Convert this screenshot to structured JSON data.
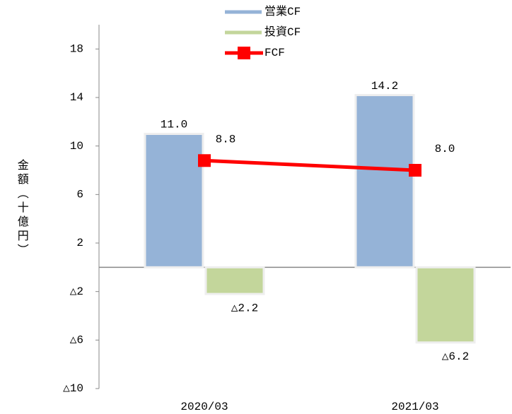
{
  "chart_data": {
    "type": "combo",
    "y_axis_label": "金額（十億円）",
    "categories": [
      "2020/03",
      "2021/03"
    ],
    "series": [
      {
        "name": "営業CF",
        "type": "bar",
        "color": "#95b3d7",
        "values": [
          11.0,
          14.2
        ],
        "value_labels": [
          "11.0",
          "14.2"
        ]
      },
      {
        "name": "投資CF",
        "type": "bar",
        "color": "#c3d69b",
        "values": [
          -2.2,
          -6.2
        ],
        "value_labels": [
          "△2.2",
          "△6.2"
        ]
      },
      {
        "name": "FCF",
        "type": "line",
        "color": "#ff0000",
        "values": [
          8.8,
          8.0
        ],
        "value_labels": [
          "8.8",
          "8.0"
        ]
      }
    ],
    "ylim": [
      -10,
      20
    ],
    "yticks": [
      {
        "value": -10,
        "label": "△10"
      },
      {
        "value": -6,
        "label": "△6"
      },
      {
        "value": -2,
        "label": "△2"
      },
      2,
      6,
      10,
      14,
      18
    ],
    "negative_label_color": "#ff0000",
    "legend": "top"
  }
}
